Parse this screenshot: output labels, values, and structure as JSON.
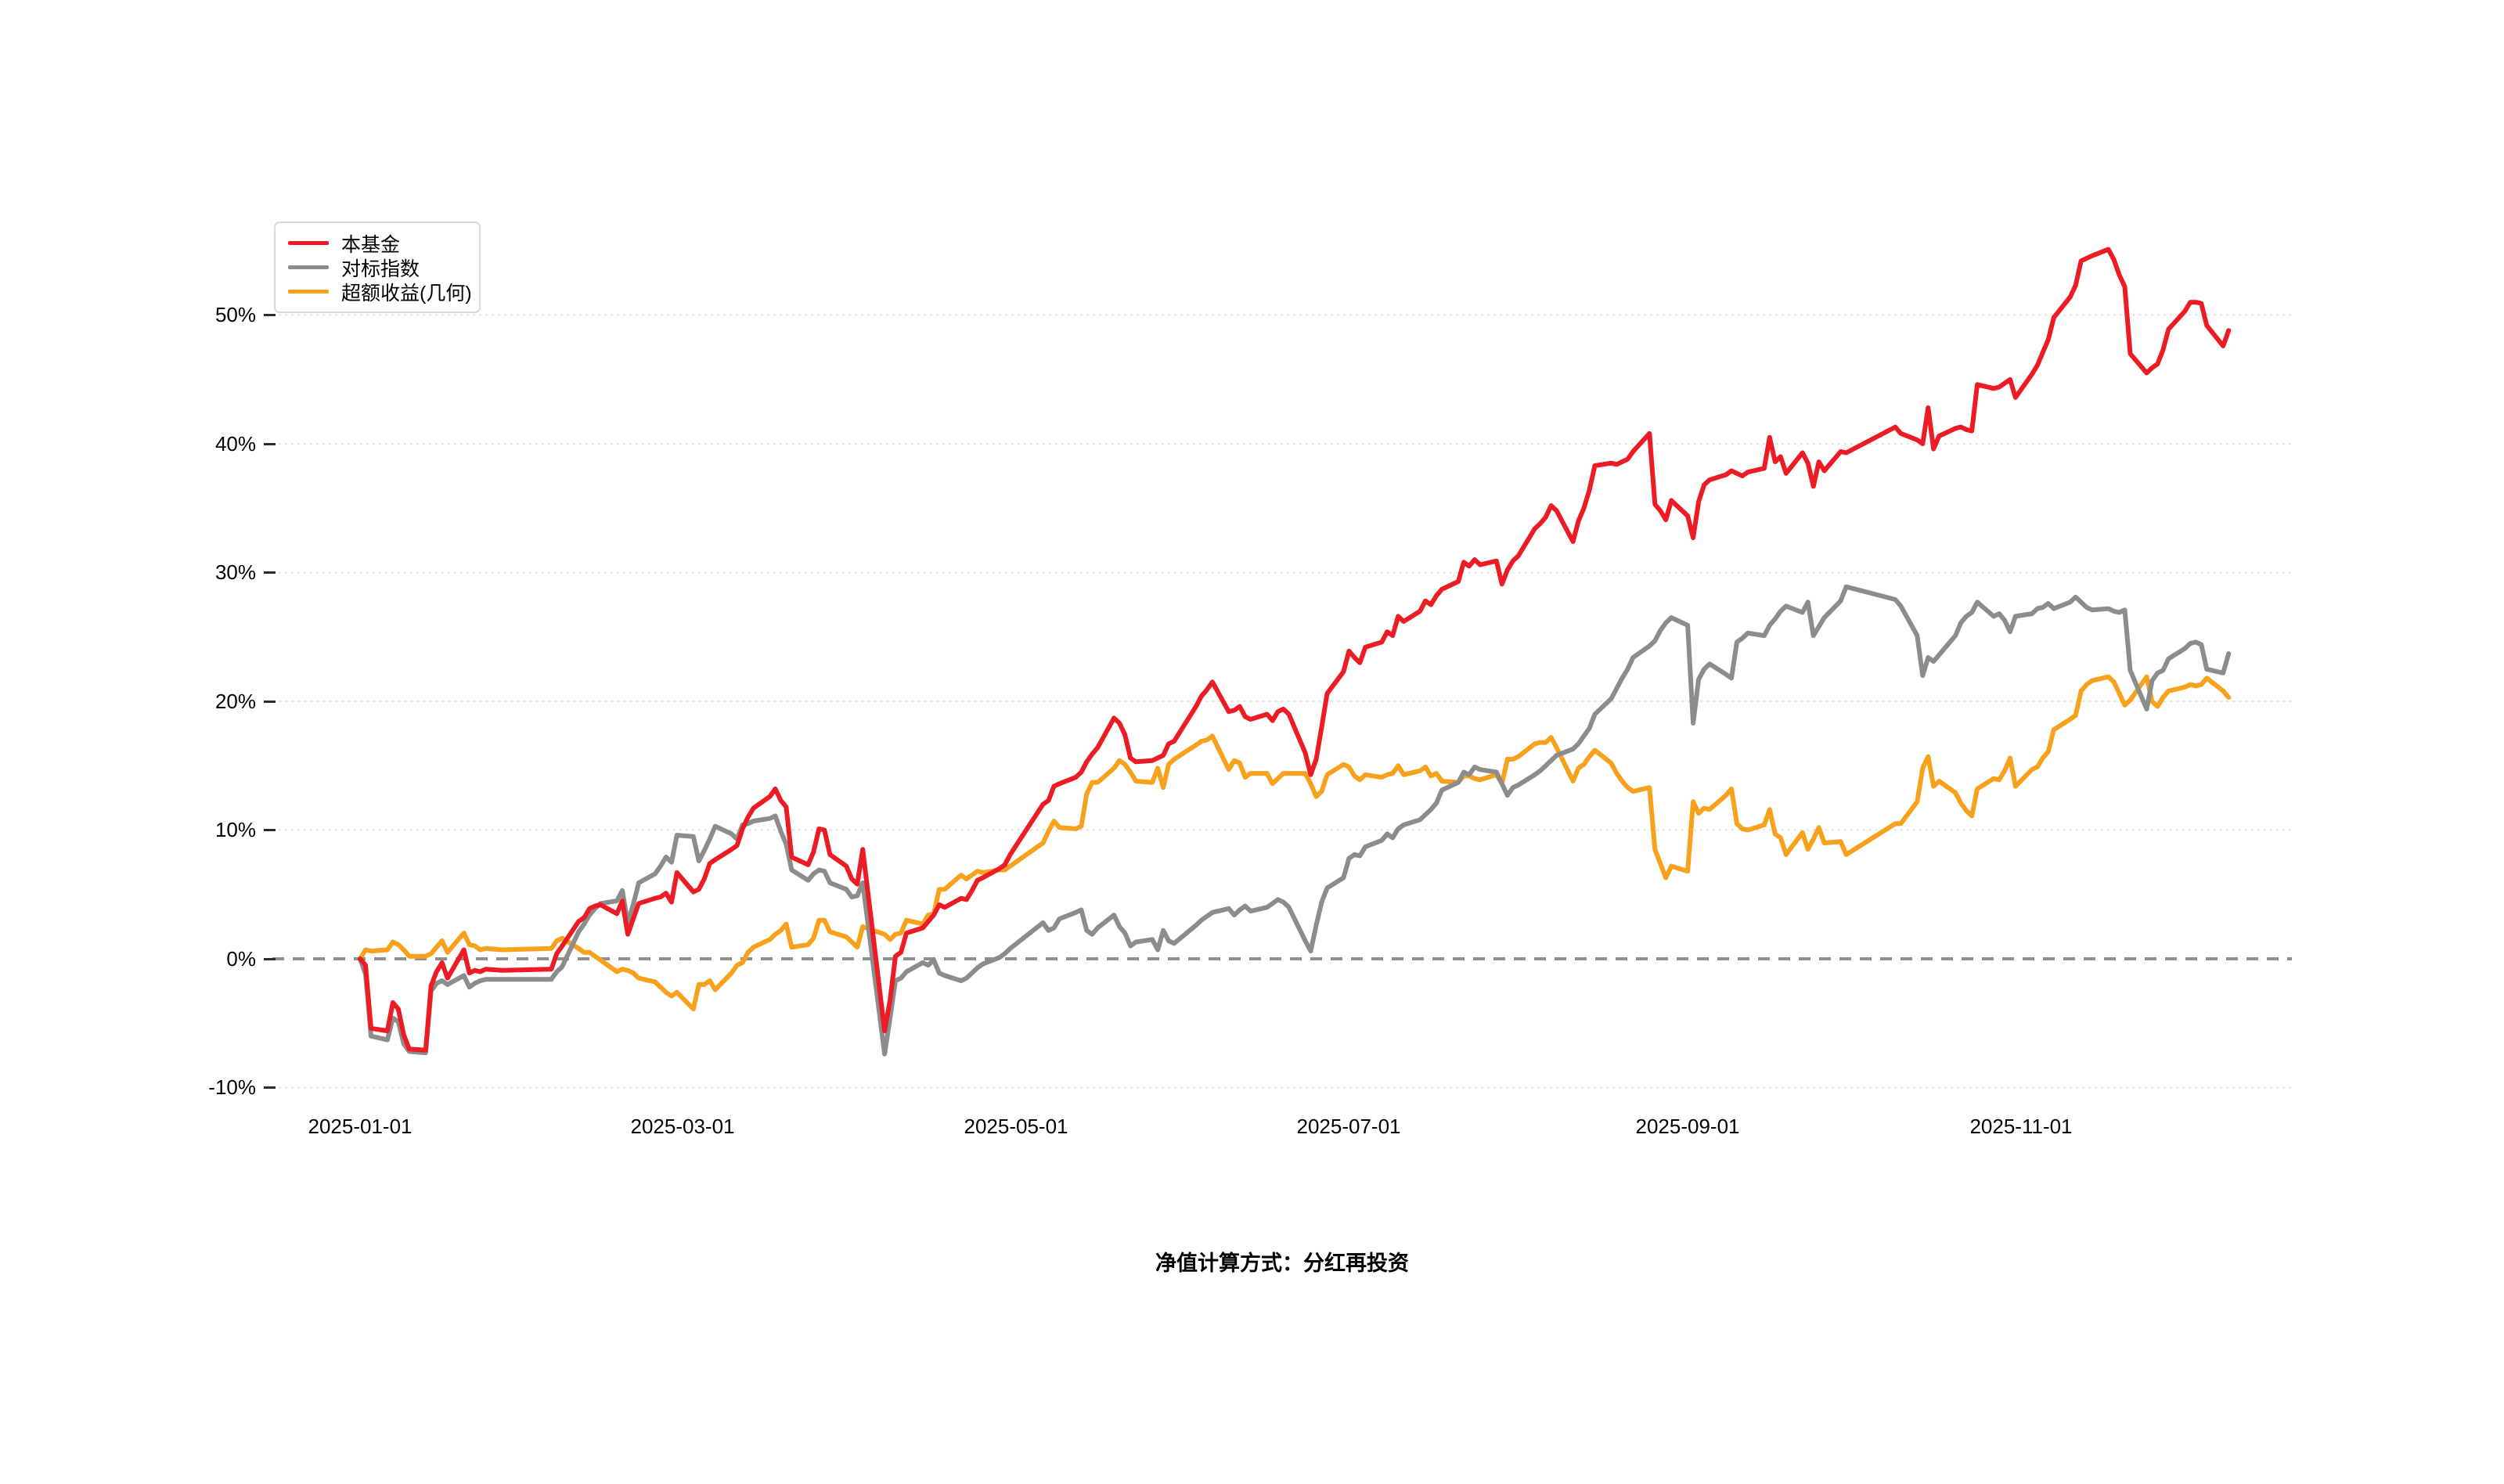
{
  "caption": "净值计算方式：分红再投资",
  "chart_data": {
    "type": "line",
    "title": "",
    "xlabel": "",
    "ylabel": "",
    "grid": "horizontal dotted lines at each y tick; 0% line dashed gray",
    "legend_position": "top-left",
    "ylim": [
      -10,
      56
    ],
    "y_ticks": [
      {
        "value": 50,
        "label": "50%"
      },
      {
        "value": 40,
        "label": "40%"
      },
      {
        "value": 30,
        "label": "30%"
      },
      {
        "value": 20,
        "label": "20%"
      },
      {
        "value": 10,
        "label": "10%"
      },
      {
        "value": 0,
        "label": "0%"
      },
      {
        "value": -10,
        "label": "-10%"
      }
    ],
    "x_ticks": [
      {
        "date": "2025-01-01",
        "label": "2025-01-01"
      },
      {
        "date": "2025-03-01",
        "label": "2025-03-01"
      },
      {
        "date": "2025-05-01",
        "label": "2025-05-01"
      },
      {
        "date": "2025-07-01",
        "label": "2025-07-01"
      },
      {
        "date": "2025-09-01",
        "label": "2025-09-01"
      },
      {
        "date": "2025-11-01",
        "label": "2025-11-01"
      }
    ],
    "dates": [
      "2025-01-01",
      "2025-01-02",
      "2025-01-03",
      "2025-01-06",
      "2025-01-07",
      "2025-01-08",
      "2025-01-09",
      "2025-01-10",
      "2025-01-13",
      "2025-01-14",
      "2025-01-15",
      "2025-01-16",
      "2025-01-17",
      "2025-01-20",
      "2025-01-21",
      "2025-01-22",
      "2025-01-23",
      "2025-01-24",
      "2025-01-27",
      "2025-02-05",
      "2025-02-06",
      "2025-02-07",
      "2025-02-10",
      "2025-02-11",
      "2025-02-12",
      "2025-02-13",
      "2025-02-14",
      "2025-02-17",
      "2025-02-18",
      "2025-02-19",
      "2025-02-20",
      "2025-02-21",
      "2025-02-24",
      "2025-02-25",
      "2025-02-26",
      "2025-02-27",
      "2025-02-28",
      "2025-03-03",
      "2025-03-04",
      "2025-03-05",
      "2025-03-06",
      "2025-03-07",
      "2025-03-10",
      "2025-03-11",
      "2025-03-12",
      "2025-03-13",
      "2025-03-14",
      "2025-03-17",
      "2025-03-18",
      "2025-03-19",
      "2025-03-20",
      "2025-03-21",
      "2025-03-24",
      "2025-03-25",
      "2025-03-26",
      "2025-03-27",
      "2025-03-28",
      "2025-03-31",
      "2025-04-01",
      "2025-04-02",
      "2025-04-03",
      "2025-04-07",
      "2025-04-08",
      "2025-04-09",
      "2025-04-10",
      "2025-04-11",
      "2025-04-14",
      "2025-04-15",
      "2025-04-16",
      "2025-04-17",
      "2025-04-18",
      "2025-04-21",
      "2025-04-22",
      "2025-04-23",
      "2025-04-24",
      "2025-04-25",
      "2025-04-28",
      "2025-04-29",
      "2025-04-30",
      "2025-05-06",
      "2025-05-07",
      "2025-05-08",
      "2025-05-09",
      "2025-05-12",
      "2025-05-13",
      "2025-05-14",
      "2025-05-15",
      "2025-05-16",
      "2025-05-19",
      "2025-05-20",
      "2025-05-21",
      "2025-05-22",
      "2025-05-23",
      "2025-05-26",
      "2025-05-27",
      "2025-05-28",
      "2025-05-29",
      "2025-05-30",
      "2025-06-03",
      "2025-06-04",
      "2025-06-05",
      "2025-06-06",
      "2025-06-09",
      "2025-06-10",
      "2025-06-11",
      "2025-06-12",
      "2025-06-13",
      "2025-06-16",
      "2025-06-17",
      "2025-06-18",
      "2025-06-19",
      "2025-06-20",
      "2025-06-23",
      "2025-06-24",
      "2025-06-25",
      "2025-06-26",
      "2025-06-27",
      "2025-06-30",
      "2025-07-01",
      "2025-07-02",
      "2025-07-03",
      "2025-07-04",
      "2025-07-07",
      "2025-07-08",
      "2025-07-09",
      "2025-07-10",
      "2025-07-11",
      "2025-07-14",
      "2025-07-15",
      "2025-07-16",
      "2025-07-17",
      "2025-07-18",
      "2025-07-21",
      "2025-07-22",
      "2025-07-23",
      "2025-07-24",
      "2025-07-25",
      "2025-07-28",
      "2025-07-29",
      "2025-07-30",
      "2025-07-31",
      "2025-08-01",
      "2025-08-04",
      "2025-08-05",
      "2025-08-06",
      "2025-08-07",
      "2025-08-08",
      "2025-08-11",
      "2025-08-12",
      "2025-08-13",
      "2025-08-14",
      "2025-08-15",
      "2025-08-18",
      "2025-08-19",
      "2025-08-20",
      "2025-08-21",
      "2025-08-22",
      "2025-08-25",
      "2025-08-26",
      "2025-08-27",
      "2025-08-28",
      "2025-08-29",
      "2025-09-01",
      "2025-09-02",
      "2025-09-03",
      "2025-09-04",
      "2025-09-05",
      "2025-09-08",
      "2025-09-09",
      "2025-09-10",
      "2025-09-11",
      "2025-09-12",
      "2025-09-15",
      "2025-09-16",
      "2025-09-17",
      "2025-09-18",
      "2025-09-19",
      "2025-09-22",
      "2025-09-23",
      "2025-09-24",
      "2025-09-25",
      "2025-09-26",
      "2025-09-29",
      "2025-09-30",
      "2025-10-09",
      "2025-10-10",
      "2025-10-13",
      "2025-10-14",
      "2025-10-15",
      "2025-10-16",
      "2025-10-17",
      "2025-10-20",
      "2025-10-21",
      "2025-10-22",
      "2025-10-23",
      "2025-10-24",
      "2025-10-27",
      "2025-10-28",
      "2025-10-29",
      "2025-10-30",
      "2025-10-31",
      "2025-11-03",
      "2025-11-04",
      "2025-11-05",
      "2025-11-06",
      "2025-11-07",
      "2025-11-10",
      "2025-11-11",
      "2025-11-12",
      "2025-11-13",
      "2025-11-14",
      "2025-11-17",
      "2025-11-18",
      "2025-11-19",
      "2025-11-20",
      "2025-11-21",
      "2025-11-24",
      "2025-11-25",
      "2025-11-26",
      "2025-11-27",
      "2025-11-28",
      "2025-12-01",
      "2025-12-02",
      "2025-12-03",
      "2025-12-04",
      "2025-12-05",
      "2025-12-08",
      "2025-12-09"
    ],
    "series": [
      {
        "name": "本基金",
        "color": "#ed1c24",
        "values": [
          0,
          -0.5,
          -5.4,
          -5.6,
          -3.4,
          -3.9,
          -5.9,
          -7.0,
          -7.1,
          -2.1,
          -1.0,
          -0.3,
          -1.5,
          0.7,
          -1.1,
          -0.9,
          -1.0,
          -0.8,
          -0.9,
          -0.8,
          0.4,
          1.0,
          2.9,
          3.2,
          3.9,
          4.1,
          4.2,
          3.5,
          4.5,
          1.9,
          3.1,
          4.3,
          4.7,
          4.8,
          5.1,
          4.4,
          6.7,
          5.2,
          5.4,
          6.2,
          7.4,
          7.7,
          8.5,
          8.8,
          10.1,
          11.0,
          11.7,
          12.6,
          13.2,
          12.3,
          11.8,
          7.9,
          7.3,
          8.3,
          10.1,
          10.0,
          8.1,
          7.2,
          6.2,
          5.8,
          8.5,
          -5.6,
          -3.2,
          0.2,
          0.5,
          2.0,
          2.4,
          2.9,
          3.4,
          4.2,
          4.0,
          4.7,
          4.6,
          5.3,
          6.1,
          6.3,
          7.0,
          7.3,
          8.1,
          12.0,
          12.3,
          13.4,
          13.6,
          14.1,
          14.5,
          15.3,
          15.9,
          16.4,
          18.7,
          18.3,
          17.4,
          15.6,
          15.3,
          15.4,
          15.6,
          15.8,
          16.7,
          16.9,
          19.6,
          20.4,
          20.9,
          21.5,
          19.2,
          19.3,
          19.6,
          18.8,
          18.6,
          19.0,
          18.5,
          19.2,
          19.4,
          19.0,
          16.0,
          14.3,
          15.5,
          18.0,
          20.6,
          22.3,
          23.9,
          23.4,
          23.0,
          24.2,
          24.6,
          25.4,
          25.1,
          26.6,
          26.2,
          27.0,
          27.8,
          27.5,
          28.2,
          28.7,
          29.3,
          30.8,
          30.5,
          31.0,
          30.6,
          30.9,
          29.1,
          30.2,
          30.9,
          31.3,
          33.4,
          33.8,
          34.3,
          35.2,
          34.8,
          32.4,
          34.0,
          35.0,
          36.4,
          38.3,
          38.5,
          38.4,
          38.6,
          38.8,
          39.4,
          40.8,
          35.3,
          34.8,
          34.1,
          35.6,
          34.4,
          32.7,
          35.5,
          36.8,
          37.2,
          37.6,
          37.9,
          37.7,
          37.5,
          37.8,
          38.1,
          40.5,
          38.6,
          39.0,
          37.7,
          39.3,
          38.5,
          36.7,
          38.6,
          37.9,
          39.4,
          39.3,
          41.3,
          40.8,
          40.3,
          40.0,
          42.8,
          39.6,
          40.6,
          41.2,
          41.3,
          41.1,
          41.0,
          44.6,
          44.3,
          44.4,
          44.7,
          45.0,
          43.6,
          45.4,
          46.1,
          47.1,
          48.1,
          49.8,
          51.4,
          52.3,
          54.2,
          54.4,
          54.6,
          55.1,
          54.3,
          53.1,
          52.2,
          47.0,
          45.5,
          45.9,
          46.2,
          47.3,
          48.9,
          50.3,
          51.0,
          51.0,
          50.9,
          49.2,
          47.6,
          48.8
        ]
      },
      {
        "name": "对标指数",
        "color": "#8c8c8c",
        "values": [
          0,
          -1.2,
          -6.0,
          -6.3,
          -4.6,
          -4.9,
          -6.6,
          -7.2,
          -7.3,
          -2.5,
          -1.9,
          -1.7,
          -2.0,
          -1.3,
          -2.2,
          -1.9,
          -1.7,
          -1.6,
          -1.6,
          -1.6,
          -1.0,
          -0.6,
          2.1,
          2.7,
          3.4,
          3.9,
          4.3,
          4.5,
          5.3,
          2.8,
          4.2,
          5.9,
          6.6,
          7.2,
          7.9,
          7.5,
          9.6,
          9.5,
          7.6,
          8.4,
          9.3,
          10.3,
          9.7,
          9.3,
          10.4,
          10.5,
          10.7,
          10.9,
          11.1,
          9.9,
          8.9,
          6.9,
          6.1,
          6.6,
          6.9,
          6.8,
          5.9,
          5.4,
          4.8,
          4.9,
          5.9,
          -7.4,
          -4.6,
          -1.7,
          -1.5,
          -1.0,
          -0.3,
          -0.5,
          -0.1,
          -1.1,
          -1.3,
          -1.7,
          -1.5,
          -1.1,
          -0.7,
          -0.4,
          0.1,
          0.4,
          0.8,
          2.8,
          2.2,
          2.4,
          3.1,
          3.6,
          3.8,
          2.2,
          1.9,
          2.4,
          3.4,
          2.5,
          2.0,
          1.0,
          1.3,
          1.5,
          0.7,
          2.2,
          1.4,
          1.2,
          2.6,
          3.0,
          3.3,
          3.6,
          3.9,
          3.4,
          3.8,
          4.1,
          3.7,
          4.0,
          4.3,
          4.6,
          4.4,
          4.0,
          1.4,
          0.6,
          2.6,
          4.4,
          5.5,
          6.3,
          7.8,
          8.1,
          8.0,
          8.7,
          9.2,
          9.7,
          9.4,
          10.1,
          10.4,
          10.8,
          11.2,
          11.6,
          12.1,
          13.1,
          13.7,
          14.5,
          14.3,
          14.9,
          14.7,
          14.5,
          13.6,
          12.7,
          13.3,
          13.5,
          14.3,
          14.6,
          15.0,
          15.4,
          15.8,
          16.3,
          16.7,
          17.3,
          17.9,
          19.0,
          20.2,
          21.0,
          21.8,
          22.5,
          23.4,
          24.3,
          24.7,
          25.5,
          26.1,
          26.5,
          25.9,
          18.3,
          21.7,
          22.5,
          22.9,
          22.1,
          21.8,
          24.6,
          24.9,
          25.3,
          25.1,
          25.9,
          26.4,
          27.0,
          27.4,
          26.9,
          27.7,
          25.1,
          25.8,
          26.5,
          27.8,
          28.9,
          27.9,
          27.4,
          25.1,
          22.0,
          23.4,
          23.1,
          23.6,
          25.1,
          26.1,
          26.6,
          26.9,
          27.7,
          26.6,
          26.8,
          26.3,
          25.4,
          26.6,
          26.8,
          27.2,
          27.3,
          27.6,
          27.2,
          27.7,
          28.1,
          27.7,
          27.3,
          27.1,
          27.2,
          27.0,
          26.9,
          27.1,
          22.4,
          19.4,
          21.6,
          22.2,
          22.4,
          23.3,
          24.1,
          24.5,
          24.6,
          24.4,
          22.5,
          22.2,
          23.7
        ]
      },
      {
        "name": "超额收益(几何)",
        "color": "#f7a11c",
        "values": [
          0,
          0.7,
          0.6,
          0.7,
          1.3,
          1.1,
          0.7,
          0.2,
          0.2,
          0.4,
          0.9,
          1.4,
          0.5,
          2.0,
          1.1,
          1.0,
          0.7,
          0.8,
          0.7,
          0.8,
          1.4,
          1.6,
          0.8,
          0.5,
          0.5,
          0.2,
          -0.1,
          -1.0,
          -0.8,
          -0.9,
          -1.1,
          -1.5,
          -1.8,
          -2.2,
          -2.6,
          -2.9,
          -2.6,
          -3.9,
          -2.0,
          -2.0,
          -1.7,
          -2.4,
          -1.1,
          -0.5,
          -0.3,
          0.5,
          0.9,
          1.5,
          1.9,
          2.2,
          2.7,
          0.9,
          1.1,
          1.6,
          3.0,
          3.0,
          2.1,
          1.7,
          1.3,
          0.9,
          2.5,
          1.9,
          1.5,
          1.9,
          2.0,
          3.0,
          2.7,
          3.4,
          3.5,
          5.4,
          5.4,
          6.5,
          6.2,
          6.5,
          6.8,
          6.7,
          6.9,
          6.9,
          7.2,
          9.0,
          9.9,
          10.7,
          10.2,
          10.1,
          10.3,
          12.8,
          13.7,
          13.7,
          14.8,
          15.4,
          15.1,
          14.5,
          13.8,
          13.7,
          14.8,
          13.3,
          15.1,
          15.5,
          16.6,
          16.9,
          17.0,
          17.3,
          14.7,
          15.4,
          15.2,
          14.1,
          14.4,
          14.4,
          13.6,
          14.0,
          14.4,
          14.4,
          14.4,
          13.6,
          12.6,
          13.0,
          14.3,
          15.1,
          14.9,
          14.2,
          13.9,
          14.3,
          14.1,
          14.3,
          14.4,
          15.0,
          14.3,
          14.6,
          14.9,
          14.2,
          14.4,
          13.8,
          13.7,
          14.2,
          14.2,
          14.0,
          13.9,
          14.3,
          13.6,
          15.5,
          15.5,
          15.7,
          16.7,
          16.8,
          16.8,
          17.2,
          16.4,
          13.8,
          14.8,
          15.1,
          15.7,
          16.2,
          15.2,
          14.4,
          13.8,
          13.3,
          13.0,
          13.3,
          8.5,
          7.4,
          6.3,
          7.2,
          6.8,
          12.2,
          11.3,
          11.7,
          11.6,
          12.7,
          13.2,
          10.5,
          10.1,
          10.0,
          10.4,
          11.6,
          9.7,
          9.4,
          8.1,
          9.8,
          8.5,
          9.3,
          10.2,
          9.0,
          9.1,
          8.1,
          10.5,
          10.5,
          12.2,
          14.8,
          15.7,
          13.4,
          13.8,
          12.9,
          12.1,
          11.5,
          11.1,
          13.2,
          14.0,
          13.9,
          14.6,
          15.6,
          13.4,
          14.7,
          14.9,
          15.6,
          16.1,
          17.8,
          18.6,
          18.9,
          20.8,
          21.3,
          21.6,
          21.9,
          21.5,
          20.6,
          19.7,
          20.1,
          21.9,
          20.0,
          19.6,
          20.3,
          20.8,
          21.1,
          21.3,
          21.2,
          21.3,
          21.8,
          20.8,
          20.3
        ]
      }
    ]
  }
}
